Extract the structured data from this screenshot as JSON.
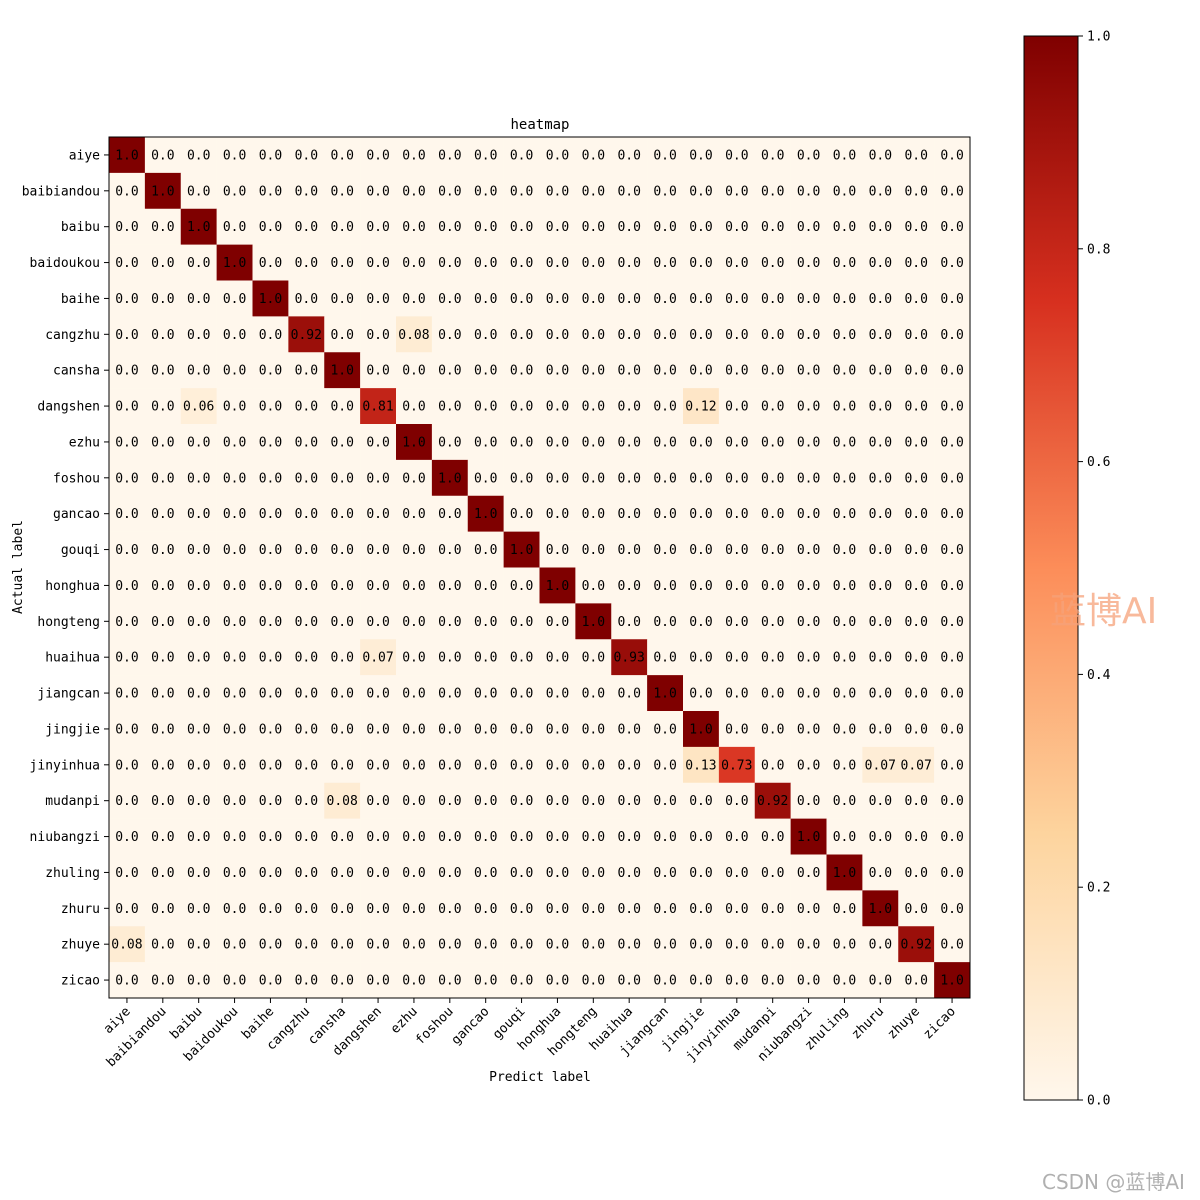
{
  "watermarks": {
    "main": "蓝博AI",
    "footer": "CSDN @蓝博AI"
  },
  "colors": {
    "low": "#fff7ec",
    "mid1": "#fdd49e",
    "mid2": "#fc8d59",
    "mid3": "#d7301f",
    "high": "#7f0000",
    "axis": "#000000",
    "background": "#ffffff"
  },
  "chart_data": {
    "type": "heatmap",
    "title": "heatmap",
    "xlabel": "Predict label",
    "ylabel": "Actual label",
    "x_categories": [
      "aiye",
      "baibiandou",
      "baibu",
      "baidoukou",
      "baihe",
      "cangzhu",
      "cansha",
      "dangshen",
      "ezhu",
      "foshou",
      "gancao",
      "gouqi",
      "honghua",
      "hongteng",
      "huaihua",
      "jiangcan",
      "jingjie",
      "jinyinhua",
      "mudanpi",
      "niubangzi",
      "zhuling",
      "zhuru",
      "zhuye",
      "zicao"
    ],
    "y_categories": [
      "aiye",
      "baibiandou",
      "baibu",
      "baidoukou",
      "baihe",
      "cangzhu",
      "cansha",
      "dangshen",
      "ezhu",
      "foshou",
      "gancao",
      "gouqi",
      "honghua",
      "hongteng",
      "huaihua",
      "jiangcan",
      "jingjie",
      "jinyinhua",
      "mudanpi",
      "niubangzi",
      "zhuling",
      "zhuru",
      "zhuye",
      "zicao"
    ],
    "colormap": "OrRd",
    "colorbar": {
      "range": [
        0.0,
        1.0
      ],
      "ticks": [
        0.0,
        0.2,
        0.4,
        0.6,
        0.8,
        1.0
      ]
    },
    "nondiagonal": [
      {
        "row": 5,
        "col": 8,
        "value": 0.08
      },
      {
        "row": 7,
        "col": 2,
        "value": 0.06
      },
      {
        "row": 7,
        "col": 16,
        "value": 0.12
      },
      {
        "row": 14,
        "col": 7,
        "value": 0.07
      },
      {
        "row": 17,
        "col": 16,
        "value": 0.13
      },
      {
        "row": 17,
        "col": 21,
        "value": 0.07
      },
      {
        "row": 17,
        "col": 22,
        "value": 0.07
      },
      {
        "row": 18,
        "col": 6,
        "value": 0.08
      },
      {
        "row": 22,
        "col": 0,
        "value": 0.08
      }
    ],
    "diagonal": [
      1.0,
      1.0,
      1.0,
      1.0,
      1.0,
      0.92,
      1.0,
      0.81,
      1.0,
      1.0,
      1.0,
      1.0,
      1.0,
      1.0,
      0.93,
      1.0,
      1.0,
      0.73,
      0.92,
      1.0,
      1.0,
      1.0,
      0.92,
      1.0
    ]
  }
}
